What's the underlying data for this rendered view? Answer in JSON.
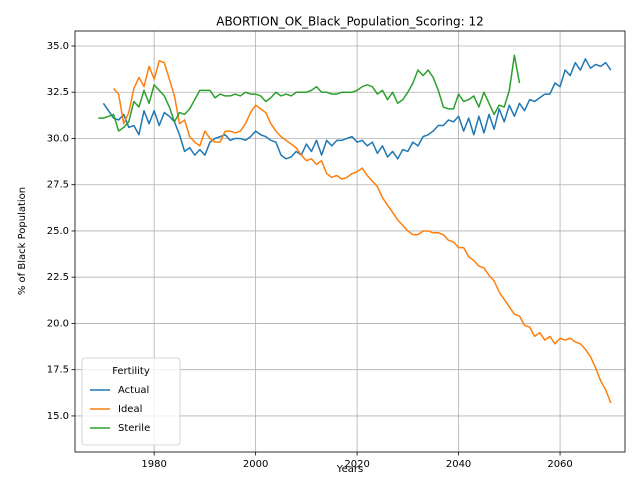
{
  "chart_data": {
    "type": "line",
    "title": "ABORTION_OK_Black_Population_Scoring: 12",
    "x_label": "Years",
    "y_label": "% of Black Population",
    "legend_title": "Fertility",
    "legend_position": "lower left",
    "grid": true,
    "x": [
      1969,
      1970,
      1971,
      1972,
      1973,
      1974,
      1975,
      1976,
      1977,
      1978,
      1979,
      1980,
      1981,
      1982,
      1983,
      1984,
      1985,
      1986,
      1987,
      1988,
      1989,
      1990,
      1991,
      1992,
      1993,
      1994,
      1995,
      1996,
      1997,
      1998,
      1999,
      2000,
      2001,
      2002,
      2003,
      2004,
      2005,
      2006,
      2007,
      2008,
      2009,
      2010,
      2011,
      2012,
      2013,
      2014,
      2015,
      2016,
      2017,
      2018,
      2019,
      2020,
      2021,
      2022,
      2023,
      2024,
      2025,
      2026,
      2027,
      2028,
      2029,
      2030,
      2031,
      2032,
      2033,
      2034,
      2035,
      2036,
      2037,
      2038,
      2039,
      2040,
      2041,
      2042,
      2043,
      2044,
      2045,
      2046,
      2047,
      2048,
      2049,
      2050,
      2051,
      2052,
      2053,
      2054,
      2055,
      2056,
      2057,
      2058,
      2059,
      2060,
      2061,
      2062,
      2063,
      2064,
      2065,
      2066,
      2067,
      2068,
      2069,
      2070
    ],
    "series": [
      {
        "name": "Actual",
        "color": "#1f77b4",
        "values": [
          null,
          31.9,
          31.5,
          31.1,
          31.0,
          31.3,
          30.6,
          30.7,
          30.2,
          31.5,
          30.8,
          31.5,
          30.7,
          31.4,
          31.2,
          30.9,
          30.2,
          29.3,
          29.5,
          29.1,
          29.4,
          29.1,
          29.8,
          30.0,
          30.1,
          30.2,
          29.9,
          30.0,
          30.0,
          29.9,
          30.1,
          30.4,
          30.2,
          30.1,
          29.9,
          29.8,
          29.1,
          28.9,
          29.0,
          29.3,
          29.1,
          29.7,
          29.3,
          29.9,
          29.1,
          29.9,
          29.6,
          29.9,
          29.9,
          30.0,
          30.1,
          29.8,
          29.9,
          29.6,
          29.8,
          29.2,
          29.6,
          29.0,
          29.3,
          28.9,
          29.4,
          29.3,
          29.8,
          29.6,
          30.1,
          30.2,
          30.4,
          30.7,
          30.7,
          31.0,
          30.9,
          31.2,
          30.4,
          31.1,
          30.2,
          31.2,
          30.3,
          31.3,
          30.5,
          31.6,
          30.9,
          31.8,
          31.2,
          31.9,
          31.5,
          32.1,
          32.0,
          32.2,
          32.4,
          32.4,
          33.0,
          32.8,
          33.7,
          33.4,
          34.1,
          33.7,
          34.3,
          33.8,
          34.0,
          33.9,
          34.1,
          33.7
        ]
      },
      {
        "name": "Ideal",
        "color": "#ff7f0e",
        "values": [
          null,
          null,
          null,
          32.7,
          32.4,
          30.8,
          31.4,
          32.7,
          33.3,
          32.8,
          33.9,
          33.2,
          34.2,
          34.1,
          33.2,
          32.3,
          30.8,
          31.0,
          30.1,
          29.8,
          29.6,
          30.4,
          30.0,
          29.8,
          29.8,
          30.4,
          30.4,
          30.3,
          30.4,
          30.8,
          31.4,
          31.8,
          31.6,
          31.4,
          30.8,
          30.4,
          30.1,
          29.9,
          29.7,
          29.5,
          29.1,
          28.8,
          28.9,
          28.6,
          28.8,
          28.1,
          27.9,
          28.0,
          27.8,
          27.9,
          28.1,
          28.2,
          28.4,
          28.0,
          27.7,
          27.4,
          26.8,
          26.4,
          26.0,
          25.6,
          25.3,
          25.0,
          24.8,
          24.8,
          25.0,
          25.0,
          24.9,
          24.9,
          24.8,
          24.5,
          24.4,
          24.1,
          24.1,
          23.6,
          23.4,
          23.1,
          23.0,
          22.6,
          22.3,
          21.7,
          21.3,
          20.9,
          20.5,
          20.4,
          19.9,
          19.8,
          19.3,
          19.5,
          19.1,
          19.3,
          18.9,
          19.2,
          19.1,
          19.2,
          19.0,
          18.9,
          18.6,
          18.2,
          17.6,
          16.9,
          16.4,
          15.7
        ]
      },
      {
        "name": "Sterile",
        "color": "#2ca02c",
        "values": [
          31.1,
          31.1,
          31.2,
          31.3,
          30.4,
          30.6,
          30.9,
          32.0,
          31.7,
          32.6,
          31.9,
          32.9,
          32.6,
          32.3,
          31.7,
          30.9,
          31.4,
          31.3,
          31.6,
          32.1,
          32.6,
          32.6,
          32.6,
          32.2,
          32.4,
          32.3,
          32.3,
          32.4,
          32.3,
          32.5,
          32.4,
          32.4,
          32.3,
          32.0,
          32.2,
          32.5,
          32.3,
          32.4,
          32.3,
          32.5,
          32.5,
          32.5,
          32.6,
          32.8,
          32.5,
          32.5,
          32.4,
          32.4,
          32.5,
          32.5,
          32.5,
          32.6,
          32.8,
          32.9,
          32.8,
          32.4,
          32.6,
          32.1,
          32.5,
          31.9,
          32.1,
          32.5,
          33.0,
          33.7,
          33.4,
          33.7,
          33.3,
          32.6,
          31.7,
          31.6,
          31.6,
          32.4,
          32.0,
          32.1,
          32.3,
          31.7,
          32.5,
          31.9,
          31.3,
          31.8,
          31.7,
          32.6,
          34.5,
          33.0,
          null,
          null,
          null,
          null,
          null,
          null,
          null,
          null,
          null,
          null,
          null,
          null,
          null,
          null,
          null,
          null,
          null,
          null
        ]
      }
    ],
    "xlim": [
      1964.4,
      2072.8
    ],
    "ylim": [
      13.05,
      35.81
    ],
    "xticks": [
      1980,
      2000,
      2020,
      2040,
      2060
    ],
    "yticks": [
      {
        "value": 15,
        "label": "15.0"
      },
      {
        "value": 17.5,
        "label": "17.5"
      },
      {
        "value": 20,
        "label": "20.0"
      },
      {
        "value": 22.5,
        "label": "22.5"
      },
      {
        "value": 25,
        "label": "25.0"
      },
      {
        "value": 27.5,
        "label": "27.5"
      },
      {
        "value": 30,
        "label": "30.0"
      },
      {
        "value": 32.5,
        "label": "32.5"
      },
      {
        "value": 35,
        "label": "35.0"
      }
    ]
  }
}
